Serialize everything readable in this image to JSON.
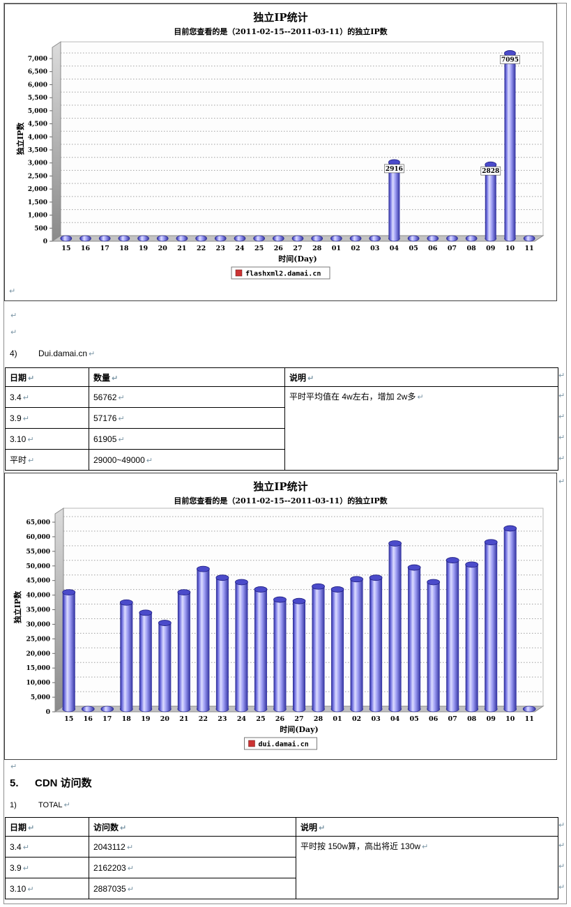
{
  "marks": {
    "pilcrow": "↵"
  },
  "section4": {
    "numbering": "4)",
    "title": "Dui.damai.cn"
  },
  "section5": {
    "numbering": "5.",
    "title": "CDN 访问数"
  },
  "subsection1": {
    "numbering": "1)",
    "title": "TOTAL"
  },
  "tables": {
    "dui": {
      "headers": {
        "date": "日期",
        "qty": "数量",
        "note": "说明"
      },
      "rows": [
        {
          "date": "3.4",
          "qty": "56762"
        },
        {
          "date": "3.9",
          "qty": "57176"
        },
        {
          "date": "3.10",
          "qty": "61905"
        },
        {
          "date": "平时",
          "qty": "29000~49000"
        }
      ],
      "note": "平时平均值在 4w左右，增加 2w多"
    },
    "cdn": {
      "headers": {
        "date": "日期",
        "qty": "访问数",
        "note": "说明"
      },
      "rows": [
        {
          "date": "3.4",
          "qty": "2043112"
        },
        {
          "date": "3.9",
          "qty": "2162203"
        },
        {
          "date": "3.10",
          "qty": "2887035"
        }
      ],
      "note": "平时按 150w算，高出将近 130w"
    }
  },
  "chart_data": [
    {
      "type": "bar",
      "title": "独立IP统计",
      "subtitle": "目前您查看的是（2011-02-15--2011-03-11）的独立IP数",
      "xlabel": "时间(Day)",
      "ylabel": "独立IP数",
      "legend": "flashxml2.damai.cn",
      "legend_color": "#cc3333",
      "ylim": [
        0,
        7000
      ],
      "ytick": 500,
      "grid": true,
      "legend_position": "bottom",
      "categories": [
        "15",
        "16",
        "17",
        "18",
        "19",
        "20",
        "21",
        "22",
        "23",
        "24",
        "25",
        "26",
        "27",
        "28",
        "01",
        "02",
        "03",
        "04",
        "05",
        "06",
        "07",
        "08",
        "09",
        "10",
        "11"
      ],
      "values": [
        30,
        30,
        30,
        30,
        30,
        30,
        30,
        30,
        30,
        30,
        30,
        30,
        30,
        30,
        30,
        30,
        30,
        2916,
        30,
        30,
        30,
        30,
        2828,
        7095,
        30
      ],
      "bar_labels": {
        "17": "2916",
        "22": "2828",
        "23": "7095"
      }
    },
    {
      "type": "bar",
      "title": "独立IP统计",
      "subtitle": "目前您查看的是（2011-02-15--2011-03-11）的独立IP数",
      "xlabel": "时间(Day)",
      "ylabel": "独立IP数",
      "legend": "dui.damai.cn",
      "legend_color": "#cc3333",
      "ylim": [
        0,
        65000
      ],
      "ytick": 5000,
      "grid": true,
      "legend_position": "bottom",
      "categories": [
        "15",
        "16",
        "17",
        "18",
        "19",
        "20",
        "21",
        "22",
        "23",
        "24",
        "25",
        "26",
        "27",
        "28",
        "01",
        "02",
        "03",
        "04",
        "05",
        "06",
        "07",
        "08",
        "09",
        "10",
        "11"
      ],
      "values": [
        40000,
        300,
        300,
        36500,
        33000,
        29500,
        40000,
        48000,
        45000,
        43500,
        41000,
        37500,
        37000,
        42000,
        41000,
        44500,
        45000,
        56762,
        48500,
        43500,
        51000,
        49500,
        57176,
        61905,
        300
      ],
      "bar_labels": {}
    }
  ]
}
